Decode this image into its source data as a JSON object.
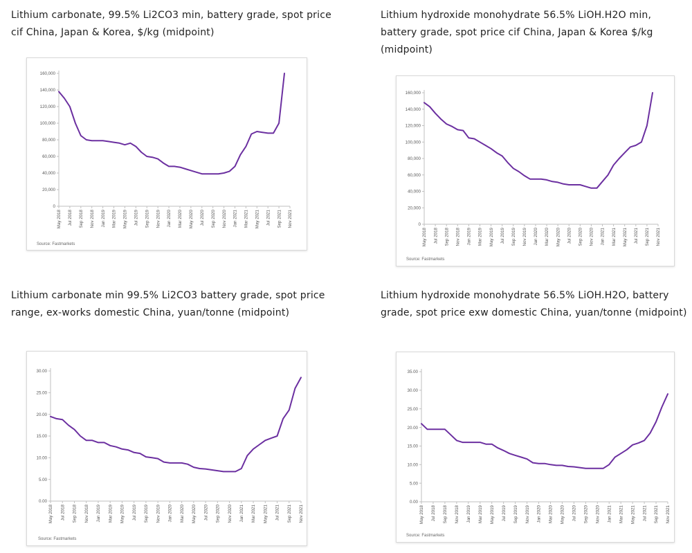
{
  "colors": {
    "line": "#6b2fa0",
    "axis": "#bfbfbf",
    "tick_text": "#595959"
  },
  "panels": [
    {
      "title": "Lithium carbonate, 99.5% Li2CO3 min, battery grade, spot price cif China, Japan & Korea, $/kg (midpoint)",
      "source": "Source: Fastmarkets"
    },
    {
      "title": "Lithium hydroxide monohydrate 56.5% LiOH.H2O min, battery grade, spot price cif China, Japan & Korea $/kg (midpoint)",
      "source": "Source: Fastmarkets"
    },
    {
      "title": "Lithium carbonate min 99.5% Li2CO3 battery grade, spot price range, ex-works domestic China, yuan/tonne (midpoint)",
      "source": "Source: Fastmarkets"
    },
    {
      "title": "Lithium hydroxide monohydrate 56.5% LiOH.H2O, battery grade, spot price exw domestic China, yuan/tonne (midpoint)",
      "source": "Source: Fastmarkets"
    }
  ],
  "chart_data": [
    {
      "type": "line",
      "x_tick_labels": [
        "May 2018",
        "Jul 2018",
        "Sep 2018",
        "Nov 2018",
        "Jan 2019",
        "Mar 2019",
        "May 2019",
        "Jul 2019",
        "Sep 2019",
        "Nov 2019",
        "Jan 2020",
        "Mar 2020",
        "May 2020",
        "Jul 2020",
        "Sep 2020",
        "Nov 2020",
        "Jan 2021",
        "Mar 2021",
        "May 2021",
        "Jul 2021",
        "Sep 2021",
        "Nov 2021"
      ],
      "y_tick_labels": [
        "0",
        "20,000",
        "40,000",
        "60,000",
        "80,000",
        "100,000",
        "120,000",
        "140,000",
        "160,000"
      ],
      "ylim": [
        0,
        160000
      ],
      "grid": false,
      "series": [
        {
          "points": [
            [
              "May 2018",
              138000
            ],
            [
              "Jun 2018",
              130000
            ],
            [
              "Jul 2018",
              120000
            ],
            [
              "Aug 2018",
              100000
            ],
            [
              "Sep 2018",
              85000
            ],
            [
              "Oct 2018",
              80000
            ],
            [
              "Nov 2018",
              79000
            ],
            [
              "Dec 2018",
              79000
            ],
            [
              "Jan 2019",
              79000
            ],
            [
              "Feb 2019",
              78000
            ],
            [
              "Mar 2019",
              77000
            ],
            [
              "Apr 2019",
              76000
            ],
            [
              "May 2019",
              74000
            ],
            [
              "Jun 2019",
              76000
            ],
            [
              "Jul 2019",
              72000
            ],
            [
              "Aug 2019",
              65000
            ],
            [
              "Sep 2019",
              60000
            ],
            [
              "Oct 2019",
              59000
            ],
            [
              "Nov 2019",
              57000
            ],
            [
              "Dec 2019",
              52000
            ],
            [
              "Jan 2020",
              48000
            ],
            [
              "Feb 2020",
              48000
            ],
            [
              "Mar 2020",
              47000
            ],
            [
              "Apr 2020",
              45000
            ],
            [
              "May 2020",
              43000
            ],
            [
              "Jun 2020",
              41000
            ],
            [
              "Jul 2020",
              39000
            ],
            [
              "Aug 2020",
              39000
            ],
            [
              "Sep 2020",
              39000
            ],
            [
              "Oct 2020",
              39000
            ],
            [
              "Nov 2020",
              40000
            ],
            [
              "Dec 2020",
              42000
            ],
            [
              "Jan 2021",
              48000
            ],
            [
              "Feb 2021",
              62000
            ],
            [
              "Mar 2021",
              72000
            ],
            [
              "Apr 2021",
              87000
            ],
            [
              "May 2021",
              90000
            ],
            [
              "Jun 2021",
              89000
            ],
            [
              "Jul 2021",
              88000
            ],
            [
              "Aug 2021",
              88000
            ],
            [
              "Sep 2021",
              100000
            ],
            [
              "Oct 2021",
              160000
            ]
          ]
        }
      ]
    },
    {
      "type": "line",
      "x_tick_labels": [
        "May 2018",
        "Jul 2018",
        "Sep 2018",
        "Nov 2018",
        "Jan 2019",
        "Mar 2019",
        "May 2019",
        "Jul 2019",
        "Sep 2019",
        "Nov 2019",
        "Jan 2020",
        "Mar 2020",
        "May 2020",
        "Jul 2020",
        "Sep 2020",
        "Nov 2020",
        "Jan 2021",
        "Mar 2021",
        "May 2021",
        "Jul 2021",
        "Sep 2021",
        "Nov 2021"
      ],
      "y_tick_labels": [
        "0",
        "20,000",
        "40,000",
        "60,000",
        "80,000",
        "100,000",
        "120,000",
        "140,000",
        "160,000"
      ],
      "ylim": [
        0,
        160000
      ],
      "grid": false,
      "series": [
        {
          "points": [
            [
              "May 2018",
              148000
            ],
            [
              "Jun 2018",
              143000
            ],
            [
              "Jul 2018",
              135000
            ],
            [
              "Aug 2018",
              128000
            ],
            [
              "Sep 2018",
              122000
            ],
            [
              "Oct 2018",
              119000
            ],
            [
              "Nov 2018",
              115000
            ],
            [
              "Dec 2018",
              114000
            ],
            [
              "Jan 2019",
              105000
            ],
            [
              "Feb 2019",
              104000
            ],
            [
              "Mar 2019",
              100000
            ],
            [
              "Apr 2019",
              96000
            ],
            [
              "May 2019",
              92000
            ],
            [
              "Jun 2019",
              87000
            ],
            [
              "Jul 2019",
              83000
            ],
            [
              "Aug 2019",
              75000
            ],
            [
              "Sep 2019",
              68000
            ],
            [
              "Oct 2019",
              64000
            ],
            [
              "Nov 2019",
              59000
            ],
            [
              "Dec 2019",
              55000
            ],
            [
              "Jan 2020",
              55000
            ],
            [
              "Feb 2020",
              55000
            ],
            [
              "Mar 2020",
              54000
            ],
            [
              "Apr 2020",
              52000
            ],
            [
              "May 2020",
              51000
            ],
            [
              "Jun 2020",
              49000
            ],
            [
              "Jul 2020",
              48000
            ],
            [
              "Aug 2020",
              48000
            ],
            [
              "Sep 2020",
              48000
            ],
            [
              "Oct 2020",
              46000
            ],
            [
              "Nov 2020",
              44000
            ],
            [
              "Dec 2020",
              44000
            ],
            [
              "Jan 2021",
              52000
            ],
            [
              "Feb 2021",
              60000
            ],
            [
              "Mar 2021",
              72000
            ],
            [
              "Apr 2021",
              80000
            ],
            [
              "May 2021",
              87000
            ],
            [
              "Jun 2021",
              94000
            ],
            [
              "Jul 2021",
              96000
            ],
            [
              "Aug 2021",
              100000
            ],
            [
              "Sep 2021",
              120000
            ],
            [
              "Oct 2021",
              160000
            ]
          ]
        }
      ]
    },
    {
      "type": "line",
      "x_tick_labels": [
        "May 2018",
        "Jul 2018",
        "Sep 2018",
        "Nov 2018",
        "Jan 2019",
        "Mar 2019",
        "May 2019",
        "Jul 2019",
        "Sep 2019",
        "Nov 2019",
        "Jan 2020",
        "Mar 2020",
        "May 2020",
        "Jul 2020",
        "Sep 2020",
        "Nov 2020",
        "Jan 2021",
        "Mar 2021",
        "May 2021",
        "Jul 2021",
        "Sep 2021",
        "Nov 2021"
      ],
      "y_tick_labels": [
        "0.00",
        "5.00",
        "10.00",
        "15.00",
        "20.00",
        "25.00",
        "30.00"
      ],
      "ylim": [
        0,
        30
      ],
      "grid": false,
      "series": [
        {
          "points": [
            [
              "May 2018",
              19.5
            ],
            [
              "Jun 2018",
              19.0
            ],
            [
              "Jul 2018",
              18.8
            ],
            [
              "Aug 2018",
              17.5
            ],
            [
              "Sep 2018",
              16.5
            ],
            [
              "Oct 2018",
              15.0
            ],
            [
              "Nov 2018",
              14.0
            ],
            [
              "Dec 2018",
              14.0
            ],
            [
              "Jan 2019",
              13.5
            ],
            [
              "Feb 2019",
              13.5
            ],
            [
              "Mar 2019",
              12.8
            ],
            [
              "Apr 2019",
              12.5
            ],
            [
              "May 2019",
              12.0
            ],
            [
              "Jun 2019",
              11.8
            ],
            [
              "Jul 2019",
              11.2
            ],
            [
              "Aug 2019",
              11.0
            ],
            [
              "Sep 2019",
              10.2
            ],
            [
              "Oct 2019",
              10.0
            ],
            [
              "Nov 2019",
              9.8
            ],
            [
              "Dec 2019",
              9.0
            ],
            [
              "Jan 2020",
              8.8
            ],
            [
              "Feb 2020",
              8.8
            ],
            [
              "Mar 2020",
              8.8
            ],
            [
              "Apr 2020",
              8.5
            ],
            [
              "May 2020",
              7.8
            ],
            [
              "Jun 2020",
              7.5
            ],
            [
              "Jul 2020",
              7.4
            ],
            [
              "Aug 2020",
              7.2
            ],
            [
              "Sep 2020",
              7.0
            ],
            [
              "Oct 2020",
              6.8
            ],
            [
              "Nov 2020",
              6.8
            ],
            [
              "Dec 2020",
              6.8
            ],
            [
              "Jan 2021",
              7.5
            ],
            [
              "Feb 2021",
              10.5
            ],
            [
              "Mar 2021",
              12.0
            ],
            [
              "Apr 2021",
              13.0
            ],
            [
              "May 2021",
              14.0
            ],
            [
              "Jun 2021",
              14.5
            ],
            [
              "Jul 2021",
              15.0
            ],
            [
              "Aug 2021",
              19.0
            ],
            [
              "Sep 2021",
              21.0
            ],
            [
              "Oct 2021",
              26.0
            ],
            [
              "Nov 2021",
              28.5
            ]
          ]
        }
      ]
    },
    {
      "type": "line",
      "x_tick_labels": [
        "May 2018",
        "Jul 2018",
        "Sep 2018",
        "Nov 2018",
        "Jan 2019",
        "Mar 2019",
        "May 2019",
        "Jul 2019",
        "Sep 2019",
        "Nov 2019",
        "Jan 2020",
        "Mar 2020",
        "May 2020",
        "Jul 2020",
        "Sep 2020",
        "Nov 2020",
        "Jan 2021",
        "Mar 2021",
        "May 2021",
        "Jul 2021",
        "Sep 2021",
        "Nov 2021"
      ],
      "y_tick_labels": [
        "0.00",
        "5.00",
        "10.00",
        "15.00",
        "20.00",
        "25.00",
        "30.00",
        "35.00"
      ],
      "ylim": [
        0,
        35
      ],
      "grid": false,
      "series": [
        {
          "points": [
            [
              "May 2018",
              21.0
            ],
            [
              "Jun 2018",
              19.5
            ],
            [
              "Jul 2018",
              19.5
            ],
            [
              "Aug 2018",
              19.5
            ],
            [
              "Sep 2018",
              19.5
            ],
            [
              "Oct 2018",
              18.0
            ],
            [
              "Nov 2018",
              16.5
            ],
            [
              "Dec 2018",
              16.0
            ],
            [
              "Jan 2019",
              16.0
            ],
            [
              "Feb 2019",
              16.0
            ],
            [
              "Mar 2019",
              16.0
            ],
            [
              "Apr 2019",
              15.5
            ],
            [
              "May 2019",
              15.5
            ],
            [
              "Jun 2019",
              14.5
            ],
            [
              "Jul 2019",
              13.8
            ],
            [
              "Aug 2019",
              13.0
            ],
            [
              "Sep 2019",
              12.5
            ],
            [
              "Oct 2019",
              12.0
            ],
            [
              "Nov 2019",
              11.5
            ],
            [
              "Dec 2019",
              10.5
            ],
            [
              "Jan 2020",
              10.3
            ],
            [
              "Feb 2020",
              10.3
            ],
            [
              "Mar 2020",
              10.0
            ],
            [
              "Apr 2020",
              9.8
            ],
            [
              "May 2020",
              9.8
            ],
            [
              "Jun 2020",
              9.5
            ],
            [
              "Jul 2020",
              9.4
            ],
            [
              "Aug 2020",
              9.2
            ],
            [
              "Sep 2020",
              9.0
            ],
            [
              "Oct 2020",
              9.0
            ],
            [
              "Nov 2020",
              9.0
            ],
            [
              "Dec 2020",
              9.0
            ],
            [
              "Jan 2021",
              10.0
            ],
            [
              "Feb 2021",
              12.0
            ],
            [
              "Mar 2021",
              13.0
            ],
            [
              "Apr 2021",
              14.0
            ],
            [
              "May 2021",
              15.3
            ],
            [
              "Jun 2021",
              15.8
            ],
            [
              "Jul 2021",
              16.5
            ],
            [
              "Aug 2021",
              18.5
            ],
            [
              "Sep 2021",
              21.5
            ],
            [
              "Oct 2021",
              25.5
            ],
            [
              "Nov 2021",
              29.0
            ]
          ]
        }
      ]
    }
  ]
}
